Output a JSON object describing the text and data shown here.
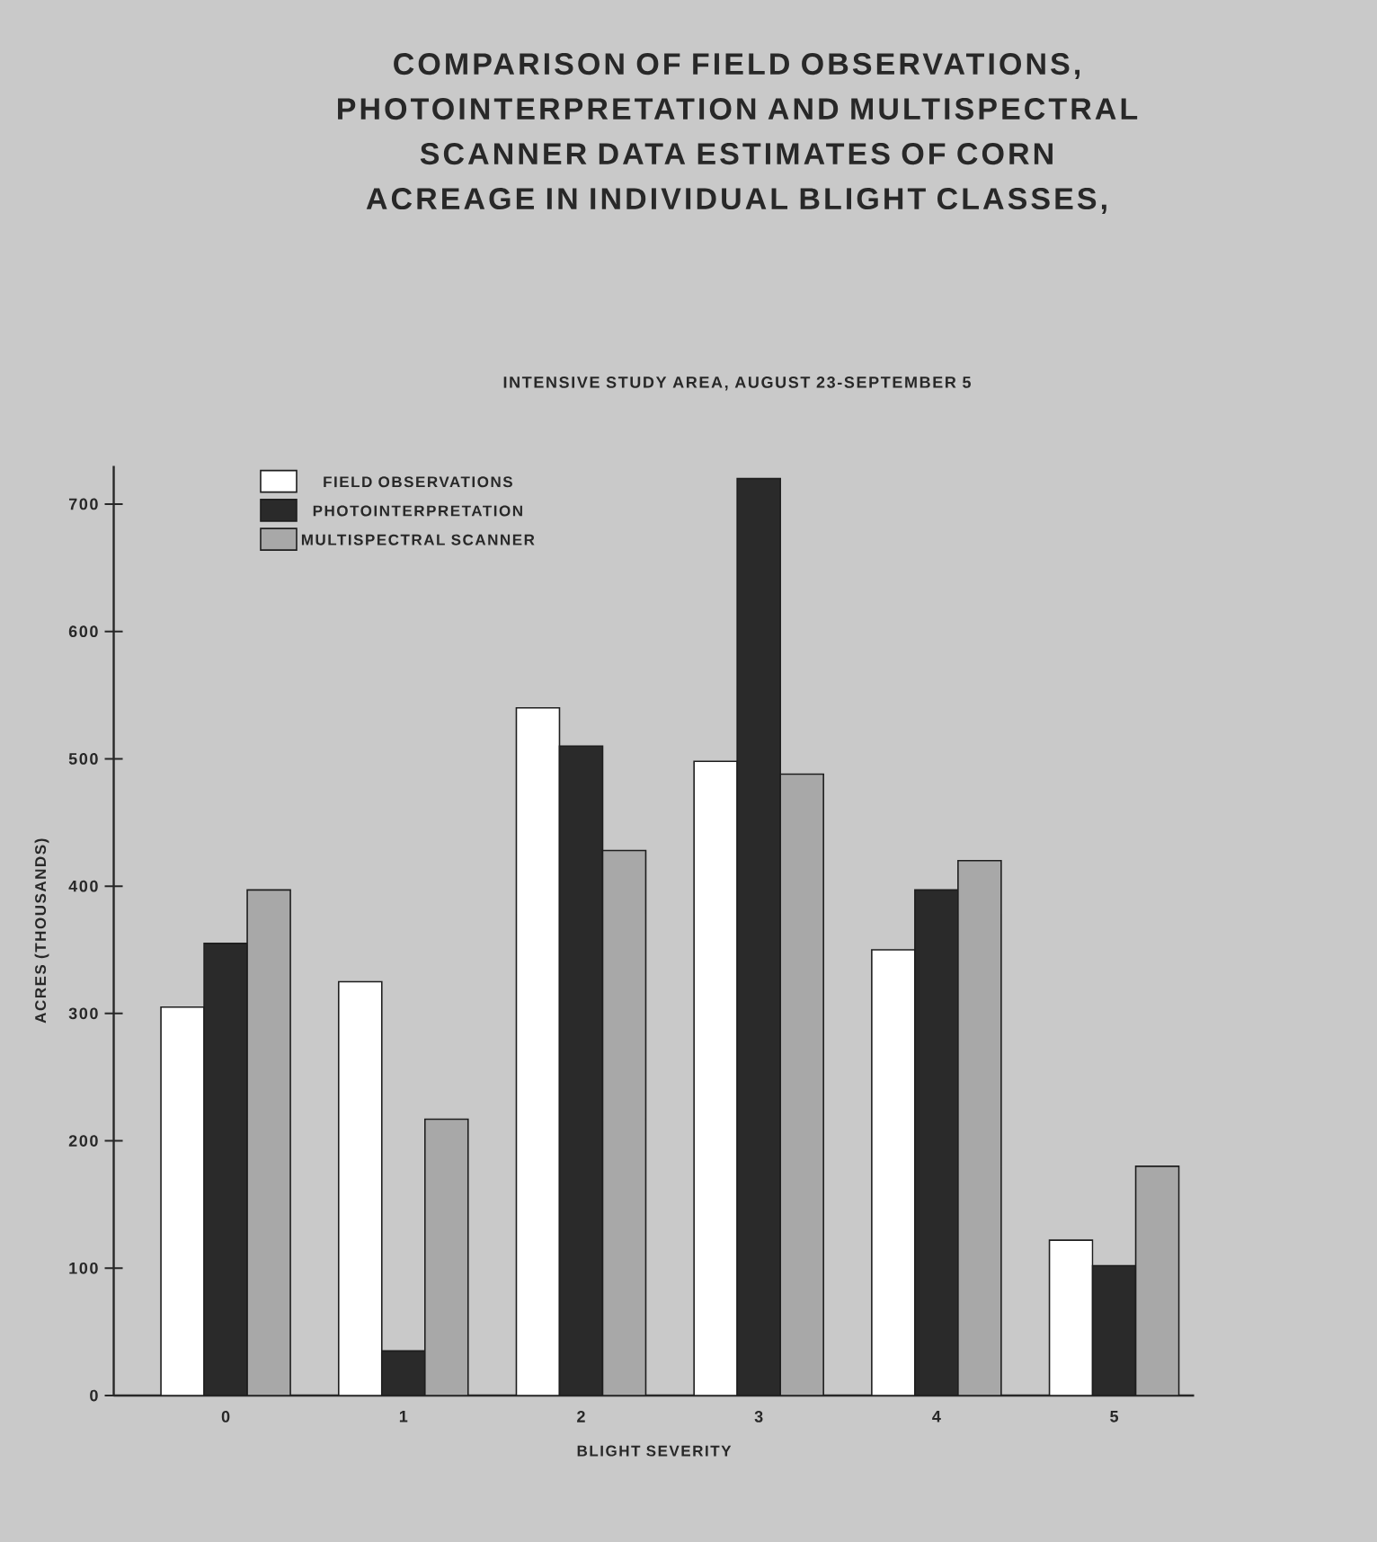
{
  "chart_data": {
    "type": "bar",
    "title": "COMPARISON OF FIELD OBSERVATIONS, PHOTOINTERPRETATION AND MULTISPECTRAL SCANNER DATA ESTIMATES OF CORN ACREAGE IN INDIVIDUAL BLIGHT CLASSES,",
    "subtitle": "INTENSIVE STUDY AREA, AUGUST 23-SEPTEMBER 5",
    "xlabel": "BLIGHT SEVERITY",
    "ylabel": "ACRES (THOUSANDS)",
    "categories": [
      "0",
      "1",
      "2",
      "3",
      "4",
      "5"
    ],
    "series": [
      {
        "name": "FIELD OBSERVATIONS",
        "color": "#ffffff",
        "values": [
          305,
          325,
          540,
          498,
          350,
          122
        ]
      },
      {
        "name": "PHOTOINTERPRETATION",
        "color": "#2a2a2a",
        "values": [
          355,
          35,
          510,
          720,
          397,
          102
        ]
      },
      {
        "name": "MULTISPECTRAL SCANNER",
        "color": "#a8a8a8",
        "values": [
          397,
          217,
          428,
          488,
          420,
          180
        ]
      }
    ],
    "ylim": [
      0,
      730
    ],
    "yticks": [
      0,
      100,
      200,
      300,
      400,
      500,
      600,
      700
    ],
    "grid": false,
    "legend": "top left"
  }
}
